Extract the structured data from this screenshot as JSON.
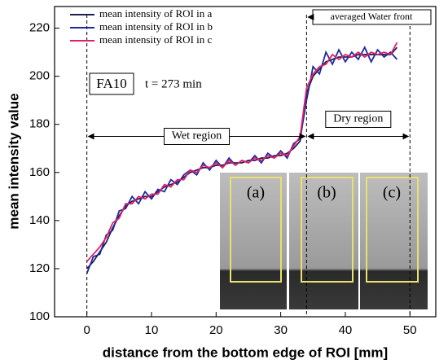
{
  "chart_data": {
    "type": "line",
    "xlabel": "distance from the bottom edge of ROI [mm]",
    "ylabel": "mean intensity value",
    "xlim": [
      -5,
      54
    ],
    "ylim": [
      100,
      229
    ],
    "xticks": [
      0,
      10,
      20,
      30,
      40,
      50
    ],
    "yticks": [
      100,
      120,
      140,
      160,
      180,
      200,
      220
    ],
    "x": [
      0,
      1,
      2,
      3,
      4,
      5,
      6,
      7,
      8,
      9,
      10,
      11,
      12,
      13,
      14,
      15,
      16,
      17,
      18,
      19,
      20,
      21,
      22,
      23,
      24,
      25,
      26,
      27,
      28,
      29,
      30,
      31,
      32,
      33,
      34,
      35,
      36,
      37,
      38,
      39,
      40,
      41,
      42,
      43,
      44,
      45,
      46,
      47,
      48
    ],
    "series": [
      {
        "name": "mean intensity of ROI in a",
        "color": "#1c2250",
        "values": [
          120,
          123,
          127,
          131,
          137,
          142,
          146,
          148,
          149,
          150,
          150,
          152,
          154,
          155,
          156,
          158,
          160,
          161,
          162,
          162,
          163,
          163,
          164,
          164,
          164,
          165,
          165,
          166,
          166,
          167,
          167,
          168,
          170,
          173,
          193,
          200,
          203,
          206,
          207,
          208,
          208,
          208,
          209,
          209,
          209,
          209,
          209,
          209,
          212
        ]
      },
      {
        "name": "mean intensity of ROI in b",
        "color": "#1f2a9e",
        "values": [
          118,
          125,
          126,
          134,
          136,
          144,
          145,
          150,
          147,
          152,
          149,
          153,
          152,
          157,
          155,
          159,
          161,
          159,
          164,
          161,
          165,
          162,
          166,
          163,
          165,
          164,
          167,
          164,
          168,
          166,
          169,
          166,
          172,
          174,
          190,
          204,
          201,
          210,
          205,
          211,
          206,
          210,
          207,
          212,
          206,
          211,
          208,
          210,
          207
        ]
      },
      {
        "name": "mean intensity of ROI in c",
        "color": "#e0206a",
        "values": [
          123,
          126,
          129,
          133,
          139,
          141,
          147,
          147,
          150,
          149,
          151,
          151,
          155,
          154,
          157,
          157,
          161,
          160,
          163,
          162,
          164,
          162,
          165,
          163,
          165,
          164,
          166,
          165,
          167,
          166,
          168,
          167,
          171,
          175,
          195,
          201,
          204,
          205,
          209,
          207,
          209,
          208,
          210,
          208,
          210,
          209,
          210,
          209,
          214
        ]
      }
    ],
    "vlines": [
      0,
      34,
      50
    ],
    "front_label": "averaged Water front",
    "sample_label": "FA10",
    "time_label": "t = 273 min",
    "region_y": 175,
    "wet_label": "Wet region",
    "dry_label": "Dry region",
    "inset_labels": [
      "(a)",
      "(b)",
      "(c)"
    ]
  }
}
